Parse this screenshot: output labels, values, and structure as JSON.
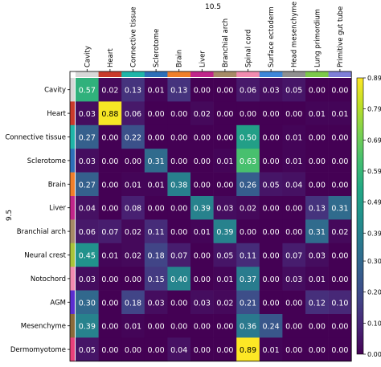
{
  "chart_data": {
    "type": "heatmap",
    "title": "",
    "xlabel": "10.5",
    "ylabel": "9.5",
    "columns": [
      "Cavity",
      "Heart",
      "Connective tissue",
      "Sclerotome",
      "Brain",
      "Liver",
      "Branchial arch",
      "Spinal cord",
      "Surface ectoderm",
      "Head mesenchyme",
      "Lung primordium",
      "Primitive gut tube"
    ],
    "rows": [
      "Cavity",
      "Heart",
      "Connective tissue",
      "Sclerotome",
      "Brain",
      "Liver",
      "Branchial arch",
      "Neural crest",
      "Notochord",
      "AGM",
      "Mesenchyme",
      "Dermomyotome"
    ],
    "values": [
      [
        0.57,
        0.02,
        0.13,
        0.01,
        0.13,
        0.0,
        0.0,
        0.06,
        0.03,
        0.05,
        0.0,
        0.0
      ],
      [
        0.03,
        0.88,
        0.06,
        0.0,
        0.0,
        0.02,
        0.0,
        0.0,
        0.0,
        0.0,
        0.01,
        0.01
      ],
      [
        0.27,
        0.0,
        0.22,
        0.0,
        0.0,
        0.0,
        0.0,
        0.5,
        0.0,
        0.01,
        0.0,
        0.0
      ],
      [
        0.03,
        0.0,
        0.0,
        0.31,
        0.0,
        0.0,
        0.01,
        0.63,
        0.0,
        0.01,
        0.0,
        0.0
      ],
      [
        0.27,
        0.0,
        0.01,
        0.01,
        0.38,
        0.0,
        0.0,
        0.26,
        0.05,
        0.04,
        0.0,
        0.0
      ],
      [
        0.04,
        0.0,
        0.08,
        0.0,
        0.0,
        0.39,
        0.03,
        0.02,
        0.0,
        0.0,
        0.13,
        0.31
      ],
      [
        0.06,
        0.07,
        0.02,
        0.11,
        0.0,
        0.01,
        0.39,
        0.0,
        0.0,
        0.0,
        0.31,
        0.02
      ],
      [
        0.45,
        0.01,
        0.02,
        0.18,
        0.07,
        0.0,
        0.05,
        0.11,
        0.0,
        0.07,
        0.03,
        0.0
      ],
      [
        0.03,
        0.0,
        0.0,
        0.15,
        0.4,
        0.0,
        0.01,
        0.37,
        0.0,
        0.03,
        0.01,
        0.0
      ],
      [
        0.3,
        0.0,
        0.18,
        0.03,
        0.0,
        0.03,
        0.02,
        0.21,
        0.0,
        0.0,
        0.12,
        0.1
      ],
      [
        0.39,
        0.0,
        0.01,
        0.0,
        0.0,
        0.0,
        0.0,
        0.36,
        0.24,
        0.0,
        0.0,
        0.0
      ],
      [
        0.05,
        0.0,
        0.0,
        0.0,
        0.04,
        0.0,
        0.0,
        0.89,
        0.01,
        0.0,
        0.0,
        0.0
      ]
    ],
    "color_range": [
      0.0,
      0.89
    ],
    "colorbar_ticks": [
      "0.00",
      "0.10",
      "0.20",
      "0.30",
      "0.39",
      "0.49",
      "0.59",
      "0.69",
      "0.79",
      "0.89"
    ],
    "colormap": "viridis",
    "group_colors": [
      "#d8d8d8",
      "#c93a2b",
      "#1fb5a8",
      "#2d6fb8",
      "#f07f2a",
      "#c0258a",
      "#a68a66",
      "#f28bb0",
      "#3d86d9",
      "#8f8f8f",
      "#7cc94a",
      "#7f7fd8"
    ],
    "row_group_colors": [
      "#d8d8d8",
      "#c93a2b",
      "#1fb5a8",
      "#2d6fb8",
      "#f07f2a",
      "#c0258a",
      "#a68a66",
      "#aac43a",
      "#f28bb0",
      "#5b2dd0",
      "#8a6a3a",
      "#e8407a"
    ]
  }
}
